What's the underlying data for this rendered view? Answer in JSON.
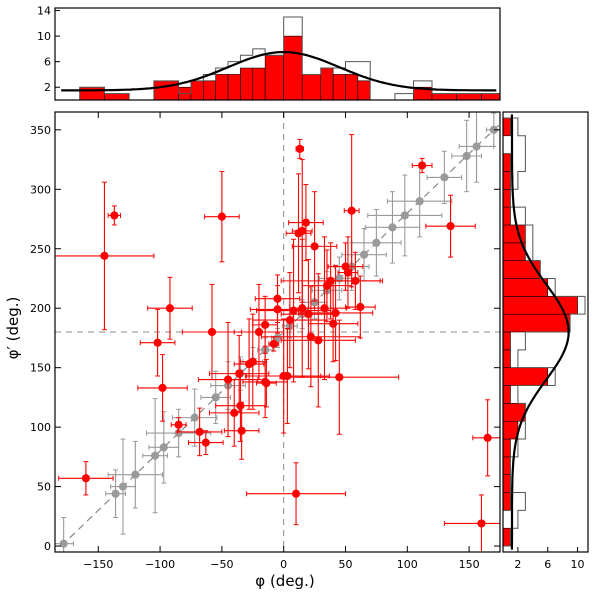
{
  "chart_data": {
    "type": "scatter",
    "main": {
      "xlabel": "φ (deg.)",
      "ylabel": "φ′ (deg.)",
      "xlim": [
        -185,
        175
      ],
      "ylim": [
        -5,
        365
      ],
      "xticks": [
        -150,
        -100,
        -50,
        0,
        50,
        100,
        150
      ],
      "yticks": [
        0,
        50,
        100,
        150,
        200,
        250,
        300,
        350
      ],
      "reference_lines": {
        "vertical_x": 0,
        "horizontal_y": 180,
        "diagonal": "y = x + 180"
      },
      "series": [
        {
          "role": "reference",
          "color": "#9a9a9a",
          "points": [
            {
              "x": -178,
              "y": 2,
              "xerr": 8,
              "yerr": 22
            },
            {
              "x": -136,
              "y": 44,
              "xerr": 8,
              "yerr": 20
            },
            {
              "x": -130,
              "y": 50,
              "xerr": 10,
              "yerr": 40
            },
            {
              "x": -120,
              "y": 60,
              "xerr": 22,
              "yerr": 28
            },
            {
              "x": -104,
              "y": 76,
              "xerr": 10,
              "yerr": 48
            },
            {
              "x": -97,
              "y": 83,
              "xerr": 12,
              "yerr": 30
            },
            {
              "x": -85,
              "y": 95,
              "xerr": 26,
              "yerr": 20
            },
            {
              "x": -72,
              "y": 108,
              "xerr": 18,
              "yerr": 24
            },
            {
              "x": -55,
              "y": 125,
              "xerr": 12,
              "yerr": 22
            },
            {
              "x": -45,
              "y": 135,
              "xerr": 14,
              "yerr": 20
            },
            {
              "x": -35,
              "y": 145,
              "xerr": 10,
              "yerr": 14
            },
            {
              "x": -25,
              "y": 155,
              "xerr": 8,
              "yerr": 12
            },
            {
              "x": -15,
              "y": 165,
              "xerr": 6,
              "yerr": 10
            },
            {
              "x": -5,
              "y": 175,
              "xerr": 5,
              "yerr": 8
            },
            {
              "x": 5,
              "y": 185,
              "xerr": 6,
              "yerr": 10
            },
            {
              "x": 15,
              "y": 195,
              "xerr": 8,
              "yerr": 12
            },
            {
              "x": 25,
              "y": 205,
              "xerr": 10,
              "yerr": 14
            },
            {
              "x": 35,
              "y": 215,
              "xerr": 12,
              "yerr": 16
            },
            {
              "x": 45,
              "y": 225,
              "xerr": 16,
              "yerr": 18
            },
            {
              "x": 55,
              "y": 235,
              "xerr": 14,
              "yerr": 20
            },
            {
              "x": 65,
              "y": 245,
              "xerr": 18,
              "yerr": 22
            },
            {
              "x": 75,
              "y": 255,
              "xerr": 20,
              "yerr": 28
            },
            {
              "x": 88,
              "y": 268,
              "xerr": 22,
              "yerr": 30
            },
            {
              "x": 98,
              "y": 278,
              "xerr": 30,
              "yerr": 34
            },
            {
              "x": 110,
              "y": 290,
              "xerr": 26,
              "yerr": 30
            },
            {
              "x": 130,
              "y": 310,
              "xerr": 14,
              "yerr": 22
            },
            {
              "x": 148,
              "y": 328,
              "xerr": 12,
              "yerr": 30
            },
            {
              "x": 156,
              "y": 336,
              "xerr": 14,
              "yerr": 30
            },
            {
              "x": 170,
              "y": 350,
              "xerr": 6,
              "yerr": 14
            }
          ]
        },
        {
          "role": "measured",
          "color": "#ff0000",
          "points": [
            {
              "x": -160,
              "y": 57,
              "xerr": 22,
              "yerr": 14
            },
            {
              "x": -145,
              "y": 244,
              "xerr": 40,
              "yerr": 62
            },
            {
              "x": -137,
              "y": 278,
              "xerr": 5,
              "yerr": 8
            },
            {
              "x": -102,
              "y": 171,
              "xerr": 14,
              "yerr": 28
            },
            {
              "x": -98,
              "y": 133,
              "xerr": 20,
              "yerr": 28
            },
            {
              "x": -92,
              "y": 200,
              "xerr": 18,
              "yerr": 26
            },
            {
              "x": -85,
              "y": 102,
              "xerr": 6,
              "yerr": 6
            },
            {
              "x": -68,
              "y": 96,
              "xerr": 18,
              "yerr": 20
            },
            {
              "x": -63,
              "y": 87,
              "xerr": 14,
              "yerr": 10
            },
            {
              "x": -58,
              "y": 180,
              "xerr": 24,
              "yerr": 40
            },
            {
              "x": -50,
              "y": 277,
              "xerr": 14,
              "yerr": 38
            },
            {
              "x": -45,
              "y": 140,
              "xerr": 24,
              "yerr": 48
            },
            {
              "x": -40,
              "y": 112,
              "xerr": 20,
              "yerr": 28
            },
            {
              "x": -36,
              "y": 145,
              "xerr": 24,
              "yerr": 32
            },
            {
              "x": -35,
              "y": 118,
              "xerr": 20,
              "yerr": 30
            },
            {
              "x": -34,
              "y": 97,
              "xerr": 14,
              "yerr": 24
            },
            {
              "x": -28,
              "y": 153,
              "xerr": 12,
              "yerr": 38
            },
            {
              "x": -25,
              "y": 155,
              "xerr": 10,
              "yerr": 40
            },
            {
              "x": -20,
              "y": 180,
              "xerr": 20,
              "yerr": 40
            },
            {
              "x": -15,
              "y": 186,
              "xerr": 10,
              "yerr": 24
            },
            {
              "x": -15,
              "y": 138,
              "xerr": 18,
              "yerr": 30
            },
            {
              "x": -14,
              "y": 137,
              "xerr": 8,
              "yerr": 20
            },
            {
              "x": -8,
              "y": 170,
              "xerr": 4,
              "yerr": 6
            },
            {
              "x": -5,
              "y": 199,
              "xerr": 22,
              "yerr": 20
            },
            {
              "x": -5,
              "y": 208,
              "xerr": 18,
              "yerr": 20
            },
            {
              "x": 0,
              "y": 143,
              "xerr": 30,
              "yerr": 48
            },
            {
              "x": 3,
              "y": 143,
              "xerr": 34,
              "yerr": 40
            },
            {
              "x": 5,
              "y": 190,
              "xerr": 30,
              "yerr": 40
            },
            {
              "x": 8,
              "y": 198,
              "xerr": 30,
              "yerr": 60
            },
            {
              "x": 10,
              "y": 44,
              "xerr": 40,
              "yerr": 26
            },
            {
              "x": 12,
              "y": 263,
              "xerr": 10,
              "yerr": 50
            },
            {
              "x": 13,
              "y": 334,
              "xerr": 3,
              "yerr": 8
            },
            {
              "x": 15,
              "y": 265,
              "xerr": 8,
              "yerr": 60
            },
            {
              "x": 15,
              "y": 200,
              "xerr": 10,
              "yerr": 58
            },
            {
              "x": 18,
              "y": 272,
              "xerr": 14,
              "yerr": 32
            },
            {
              "x": 20,
              "y": 195,
              "xerr": 22,
              "yerr": 46
            },
            {
              "x": 22,
              "y": 176,
              "xerr": 40,
              "yerr": 42
            },
            {
              "x": 25,
              "y": 252,
              "xerr": 18,
              "yerr": 46
            },
            {
              "x": 28,
              "y": 173,
              "xerr": 30,
              "yerr": 56
            },
            {
              "x": 33,
              "y": 200,
              "xerr": 18,
              "yerr": 60
            },
            {
              "x": 35,
              "y": 219,
              "xerr": 20,
              "yerr": 30
            },
            {
              "x": 38,
              "y": 223,
              "xerr": 40,
              "yerr": 32
            },
            {
              "x": 40,
              "y": 187,
              "xerr": 20,
              "yerr": 32
            },
            {
              "x": 42,
              "y": 196,
              "xerr": 30,
              "yerr": 40
            },
            {
              "x": 45,
              "y": 142,
              "xerr": 48,
              "yerr": 48
            },
            {
              "x": 50,
              "y": 235,
              "xerr": 14,
              "yerr": 20
            },
            {
              "x": 52,
              "y": 230,
              "xerr": 8,
              "yerr": 30
            },
            {
              "x": 55,
              "y": 282,
              "xerr": 6,
              "yerr": 64
            },
            {
              "x": 58,
              "y": 223,
              "xerr": 22,
              "yerr": 24
            },
            {
              "x": 62,
              "y": 201,
              "xerr": 12,
              "yerr": 26
            },
            {
              "x": 112,
              "y": 320,
              "xerr": 8,
              "yerr": 6
            },
            {
              "x": 135,
              "y": 269,
              "xerr": 20,
              "yerr": 26
            },
            {
              "x": 160,
              "y": 19,
              "xerr": 30,
              "yerr": 24
            },
            {
              "x": 165,
              "y": 91,
              "xerr": 12,
              "yerr": 32
            }
          ]
        }
      ]
    },
    "top_histogram": {
      "type": "bar",
      "axis": "φ",
      "yticks": [
        2,
        6,
        10,
        14
      ],
      "ylim": [
        0,
        14.4
      ],
      "bin_edges": [
        -185,
        -165,
        -145,
        -125,
        -105,
        -85,
        -75,
        -65,
        -55,
        -45,
        -35,
        -25,
        -15,
        0,
        15,
        30,
        40,
        50,
        60,
        70,
        90,
        105,
        120,
        140,
        160,
        175
      ],
      "filled_counts": [
        0,
        2,
        1,
        0,
        3,
        2,
        3,
        3,
        4,
        4,
        5,
        5,
        7,
        10,
        4,
        5,
        4,
        4,
        3,
        0,
        0,
        2,
        1,
        1,
        1
      ],
      "outline_counts": [
        0,
        2,
        1,
        0,
        3,
        1,
        3,
        4,
        5,
        6,
        7,
        8,
        7,
        13,
        4,
        5,
        5,
        6,
        6,
        0,
        1,
        3,
        1,
        1,
        1
      ],
      "fit_curve": {
        "baseline": 1.5,
        "amplitude": 6.0,
        "center": 0,
        "width": 45
      }
    },
    "right_histogram": {
      "type": "bar",
      "axis": "φ′",
      "xticks": [
        2,
        6,
        10
      ],
      "xlim": [
        0,
        11.4
      ],
      "bin_edges": [
        0,
        15,
        30,
        45,
        60,
        75,
        90,
        105,
        120,
        135,
        150,
        165,
        180,
        195,
        210,
        225,
        240,
        255,
        270,
        285,
        300,
        315,
        330,
        345,
        360
      ],
      "filled_counts": [
        1,
        0,
        1,
        1,
        1,
        1,
        2,
        3,
        1,
        6,
        1,
        1,
        9,
        10,
        6,
        5,
        3,
        3,
        1,
        1,
        1,
        1,
        0,
        1
      ],
      "outline_counts": [
        1,
        2,
        3,
        1,
        1,
        2,
        3,
        3,
        2,
        7,
        2,
        3,
        9,
        11,
        7,
        5,
        4,
        4,
        3,
        1,
        2,
        3,
        3,
        2
      ],
      "fit_curve": {
        "baseline": 1.2,
        "amplitude": 7.6,
        "center": 180,
        "width": 40
      }
    }
  }
}
